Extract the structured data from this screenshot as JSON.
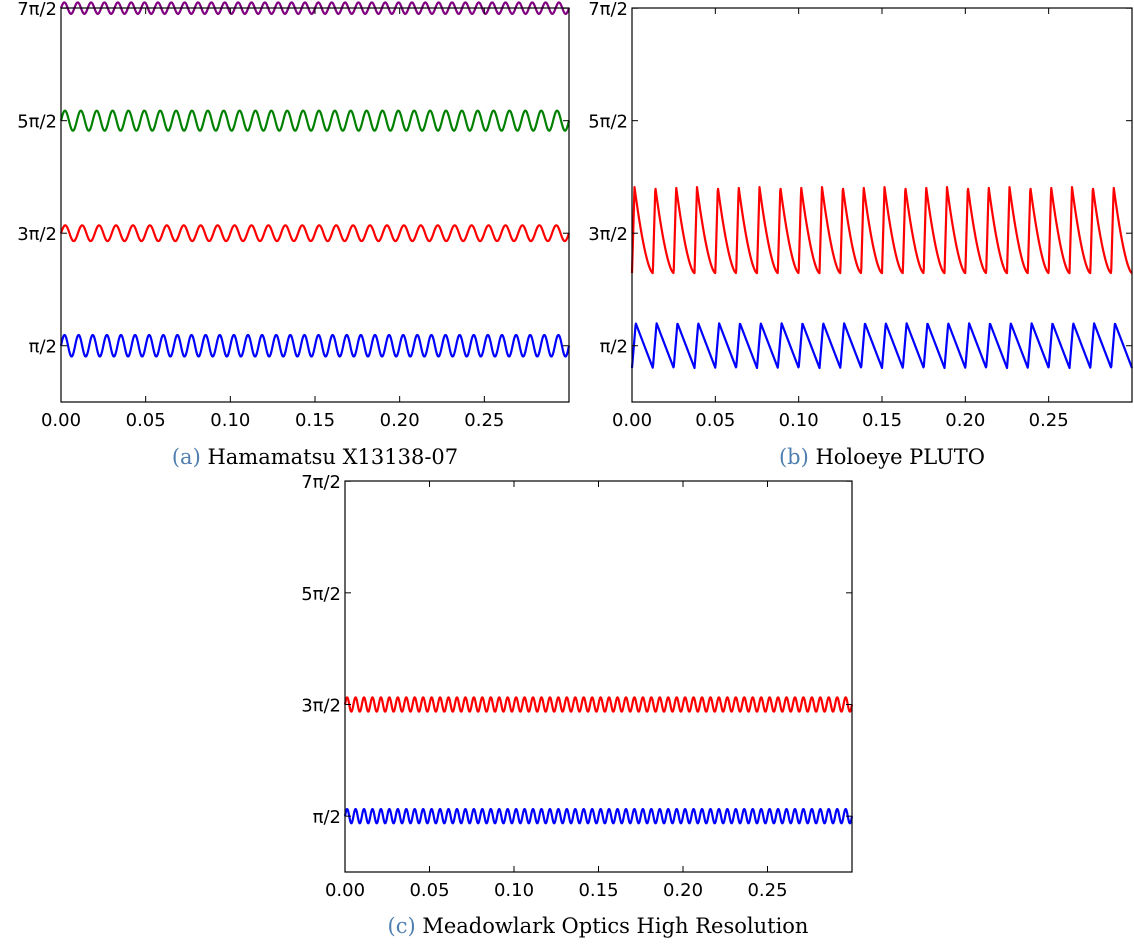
{
  "chart_data": [
    {
      "type": "line",
      "caption_tag": "(a)",
      "caption_text": "Hamamatsu X13138-07",
      "xlim": [
        0,
        0.3
      ],
      "ylim": [
        0,
        11
      ],
      "x_ticks": [
        0.0,
        0.05,
        0.1,
        0.15,
        0.2,
        0.25
      ],
      "x_tick_labels": [
        "0.00",
        "0.05",
        "0.10",
        "0.15",
        "0.20",
        "0.25"
      ],
      "y_ticks": [
        1.5708,
        4.7124,
        7.854,
        10.9956
      ],
      "y_tick_labels": [
        "π/2",
        "3π/2",
        "5π/2",
        "7π/2"
      ],
      "grid": false,
      "series": [
        {
          "color": "#0000ff",
          "waveform": "sine",
          "mean": 1.5708,
          "amplitude": 0.3,
          "cycles": 36
        },
        {
          "color": "#ff0000",
          "waveform": "sine",
          "mean": 4.7124,
          "amplitude": 0.22,
          "cycles": 30
        },
        {
          "color": "#008000",
          "waveform": "sine",
          "mean": 7.854,
          "amplitude": 0.28,
          "cycles": 32
        },
        {
          "color": "#800080",
          "waveform": "sine",
          "mean": 10.9956,
          "amplitude": 0.16,
          "cycles": 38
        }
      ]
    },
    {
      "type": "line",
      "caption_tag": "(b)",
      "caption_text": "Holoeye PLUTO",
      "xlim": [
        0,
        0.3
      ],
      "ylim": [
        0,
        11
      ],
      "x_ticks": [
        0.0,
        0.05,
        0.1,
        0.15,
        0.2,
        0.25
      ],
      "x_tick_labels": [
        "0.00",
        "0.05",
        "0.10",
        "0.15",
        "0.20",
        "0.25"
      ],
      "y_ticks": [
        1.5708,
        4.7124,
        7.854,
        10.9956
      ],
      "y_tick_labels": [
        "π/2",
        "3π/2",
        "5π/2",
        "7π/2"
      ],
      "grid": false,
      "series": [
        {
          "color": "#0000ff",
          "waveform": "sawtooth",
          "mean": 1.5708,
          "min": 0.95,
          "max": 2.2,
          "cycles": 24
        },
        {
          "color": "#ff0000",
          "waveform": "double-sawtooth",
          "mean": 4.7124,
          "min": 3.6,
          "max": 6.0,
          "cycles": 12
        }
      ]
    },
    {
      "type": "line",
      "caption_tag": "(c)",
      "caption_text": "Meadowlark Optics High Resolution",
      "xlim": [
        0,
        0.3
      ],
      "ylim": [
        0,
        11
      ],
      "x_ticks": [
        0.0,
        0.05,
        0.1,
        0.15,
        0.2,
        0.25
      ],
      "x_tick_labels": [
        "0.00",
        "0.05",
        "0.10",
        "0.15",
        "0.20",
        "0.25"
      ],
      "y_ticks": [
        1.5708,
        4.7124,
        7.854,
        10.9956
      ],
      "y_tick_labels": [
        "π/2",
        "3π/2",
        "5π/2",
        "7π/2"
      ],
      "grid": false,
      "series": [
        {
          "color": "#0000ff",
          "waveform": "sine",
          "mean": 1.5708,
          "amplitude": 0.2,
          "cycles": 60
        },
        {
          "color": "#ff0000",
          "waveform": "sine",
          "mean": 4.7124,
          "amplitude": 0.2,
          "cycles": 60
        }
      ]
    }
  ]
}
